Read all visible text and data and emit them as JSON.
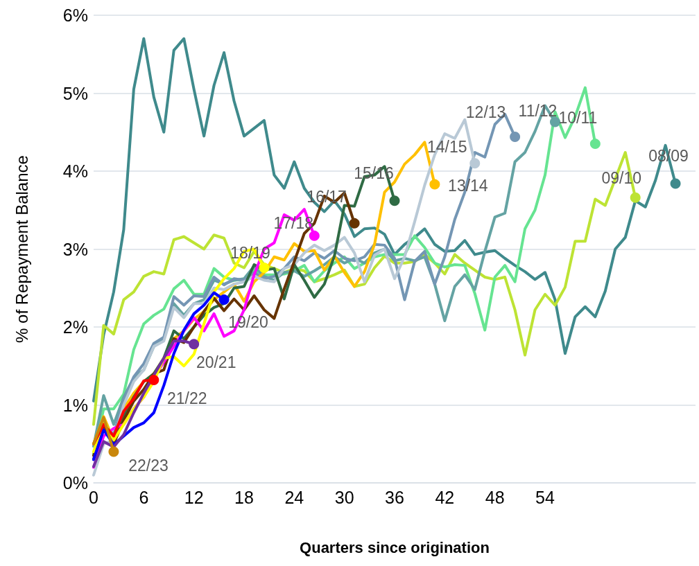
{
  "chart_data": {
    "type": "line",
    "xlabel": "Quarters since origination",
    "ylabel": "% of Repayment Balance",
    "x": [
      0,
      1.2,
      2.4,
      3.6,
      4.8,
      6,
      7.2,
      8.4,
      9.6,
      10.8,
      12,
      13.2,
      14.4,
      15.6,
      16.8,
      18,
      19.2,
      20.4,
      21.6,
      22.8,
      24,
      25.2,
      26.4,
      27.6,
      28.8,
      30,
      31.2,
      32.4,
      33.6,
      34.8,
      36,
      37.2,
      38.4,
      39.6,
      40.8,
      42,
      43.2,
      44.4,
      45.6,
      46.8,
      48,
      49.2,
      50.4,
      51.6,
      52.8,
      54,
      55.2,
      56.4,
      57.6,
      58.8,
      60,
      61.2,
      62.4,
      63.6,
      64.8,
      66,
      67.2,
      68.4,
      69.6
    ],
    "xlim": [
      0,
      72
    ],
    "xticks": [
      0,
      6,
      12,
      18,
      24,
      30,
      36,
      42,
      48,
      54
    ],
    "ylim": [
      0,
      6
    ],
    "yticks": [
      {
        "value": 0,
        "label": "0%"
      },
      {
        "value": 1,
        "label": "1%"
      },
      {
        "value": 2,
        "label": "2%"
      },
      {
        "value": 3,
        "label": "3%"
      },
      {
        "value": 4,
        "label": "4%"
      },
      {
        "value": 5,
        "label": "5%"
      },
      {
        "value": 6,
        "label": "6%"
      }
    ],
    "grid": "y",
    "line_style": "solid",
    "series": [
      {
        "name": "08/09",
        "color": "#3f8a8c",
        "values": [
          1.05,
          1.9,
          2.45,
          3.25,
          5.05,
          5.7,
          4.95,
          4.5,
          5.55,
          5.7,
          5.05,
          4.45,
          5.1,
          5.52,
          4.9,
          4.45,
          4.55,
          4.65,
          3.95,
          3.78,
          4.12,
          3.78,
          3.6,
          3.48,
          3.62,
          3.45,
          3.16,
          3.26,
          3.27,
          3.19,
          2.93,
          3.06,
          3.15,
          3.26,
          3.06,
          2.97,
          2.98,
          3.11,
          2.93,
          2.96,
          2.98,
          2.88,
          2.79,
          2.71,
          2.61,
          2.7,
          2.35,
          1.66,
          2.13,
          2.26,
          2.13,
          2.46,
          3.0,
          3.15,
          3.62,
          3.54,
          3.88,
          4.33,
          3.84
        ]
      },
      {
        "name": "09/10",
        "color": "#bde334",
        "values": [
          0.75,
          2.02,
          1.91,
          2.35,
          2.45,
          2.65,
          2.71,
          2.68,
          3.12,
          3.16,
          3.08,
          3.0,
          3.18,
          3.14,
          2.82,
          2.76,
          2.97,
          2.8,
          2.75,
          2.7,
          2.75,
          2.72,
          2.58,
          2.62,
          2.67,
          2.73,
          2.52,
          2.55,
          2.76,
          2.91,
          2.82,
          2.82,
          2.84,
          2.93,
          2.82,
          2.68,
          2.93,
          2.82,
          2.73,
          2.64,
          2.61,
          2.64,
          2.22,
          1.64,
          2.22,
          2.42,
          2.28,
          2.51,
          3.1,
          3.1,
          3.64,
          3.56,
          3.9,
          4.24,
          3.66,
          null,
          null,
          null,
          null
        ]
      },
      {
        "name": "10/11",
        "color": "#66e491",
        "values": [
          0.37,
          0.95,
          0.95,
          1.14,
          1.71,
          2.04,
          2.15,
          2.23,
          2.49,
          2.6,
          2.42,
          2.42,
          2.75,
          2.64,
          2.6,
          2.61,
          2.73,
          2.67,
          2.67,
          2.68,
          2.72,
          2.79,
          2.58,
          2.72,
          2.82,
          2.9,
          2.75,
          2.82,
          2.9,
          2.93,
          2.93,
          2.93,
          3.17,
          3.02,
          2.82,
          2.77,
          2.8,
          2.79,
          2.43,
          1.96,
          2.64,
          2.79,
          2.58,
          3.26,
          3.5,
          3.95,
          4.76,
          4.43,
          4.7,
          5.07,
          4.35,
          null,
          null,
          null,
          null,
          null,
          null,
          null,
          null
        ]
      },
      {
        "name": "11/12",
        "color": "#64a3a3",
        "values": [
          0.47,
          1.12,
          0.75,
          1.1,
          1.35,
          1.45,
          1.75,
          1.85,
          2.3,
          2.15,
          2.3,
          2.35,
          2.6,
          2.55,
          2.6,
          2.62,
          2.78,
          2.65,
          2.6,
          2.7,
          2.72,
          2.65,
          2.72,
          2.8,
          2.9,
          2.82,
          2.88,
          2.82,
          2.95,
          3.0,
          2.85,
          2.88,
          2.85,
          2.9,
          2.55,
          2.08,
          2.52,
          2.67,
          2.48,
          2.97,
          3.41,
          3.46,
          4.12,
          4.24,
          4.51,
          4.84,
          4.63,
          null,
          null,
          null,
          null,
          null,
          null,
          null,
          null,
          null,
          null,
          null,
          null
        ]
      },
      {
        "name": "12/13",
        "color": "#7496b4",
        "values": [
          0.3,
          0.75,
          0.62,
          1.06,
          1.36,
          1.53,
          1.79,
          1.87,
          2.39,
          2.28,
          2.4,
          2.39,
          2.64,
          2.54,
          2.62,
          2.6,
          2.7,
          2.62,
          2.65,
          2.75,
          2.9,
          2.85,
          2.95,
          2.88,
          2.98,
          2.88,
          2.85,
          2.9,
          3.06,
          3.05,
          2.88,
          2.35,
          2.84,
          2.97,
          2.55,
          2.9,
          3.38,
          3.73,
          4.24,
          4.18,
          4.6,
          4.73,
          4.44,
          null,
          null,
          null,
          null,
          null,
          null,
          null,
          null,
          null,
          null,
          null,
          null,
          null,
          null,
          null,
          null
        ]
      },
      {
        "name": "13/14",
        "color": "#ffc000",
        "values": [
          0.5,
          0.85,
          0.55,
          0.95,
          1.15,
          1.3,
          1.4,
          1.6,
          1.85,
          1.95,
          2.1,
          2.2,
          2.35,
          2.45,
          2.55,
          2.33,
          2.58,
          2.7,
          2.9,
          2.86,
          3.07,
          2.97,
          2.98,
          2.73,
          2.91,
          2.7,
          2.52,
          2.71,
          3.06,
          3.73,
          3.86,
          4.09,
          4.21,
          4.37,
          3.83,
          null,
          null,
          null,
          null,
          null,
          null,
          null,
          null,
          null,
          null,
          null,
          null,
          null,
          null,
          null,
          null,
          null,
          null,
          null,
          null,
          null,
          null,
          null,
          null
        ]
      },
      {
        "name": "14/15",
        "color": "#b9c9d6",
        "values": [
          0.1,
          0.5,
          0.55,
          1.0,
          1.3,
          1.45,
          1.75,
          1.82,
          2.25,
          2.12,
          2.3,
          2.3,
          2.5,
          2.48,
          2.55,
          2.58,
          2.65,
          2.6,
          2.58,
          2.75,
          2.8,
          2.95,
          3.05,
          2.98,
          3.05,
          3.15,
          2.95,
          2.58,
          2.92,
          3.0,
          2.62,
          2.9,
          3.35,
          3.82,
          4.21,
          4.48,
          4.42,
          4.66,
          4.1,
          null,
          null,
          null,
          null,
          null,
          null,
          null,
          null,
          null,
          null,
          null,
          null,
          null,
          null,
          null,
          null,
          null,
          null,
          null,
          null
        ]
      },
      {
        "name": "15/16",
        "color": "#2f6b44",
        "values": [
          0.3,
          0.8,
          0.55,
          0.85,
          1.1,
          1.3,
          1.4,
          1.6,
          1.95,
          1.85,
          2.0,
          2.15,
          2.25,
          2.3,
          2.5,
          2.52,
          2.8,
          2.73,
          2.75,
          2.36,
          2.8,
          2.6,
          2.38,
          2.55,
          2.91,
          3.56,
          3.55,
          3.93,
          3.95,
          4.06,
          3.62,
          null,
          null,
          null,
          null,
          null,
          null,
          null,
          null,
          null,
          null,
          null,
          null,
          null,
          null,
          null,
          null,
          null,
          null,
          null,
          null,
          null,
          null,
          null,
          null,
          null,
          null,
          null,
          null
        ]
      },
      {
        "name": "16/17",
        "color": "#663300",
        "values": [
          0.35,
          0.75,
          0.5,
          0.8,
          1.05,
          1.2,
          1.4,
          1.45,
          1.85,
          1.8,
          2.0,
          2.2,
          2.37,
          2.21,
          2.36,
          2.22,
          2.4,
          2.22,
          2.11,
          2.49,
          2.84,
          3.2,
          3.33,
          3.68,
          3.6,
          3.72,
          3.33,
          null,
          null,
          null,
          null,
          null,
          null,
          null,
          null,
          null,
          null,
          null,
          null,
          null,
          null,
          null,
          null,
          null,
          null,
          null,
          null,
          null,
          null,
          null,
          null,
          null,
          null,
          null,
          null,
          null,
          null,
          null,
          null
        ]
      },
      {
        "name": "17/18",
        "color": "#ff00ff",
        "values": [
          0.2,
          0.6,
          0.7,
          0.75,
          0.95,
          1.1,
          1.35,
          1.55,
          1.75,
          1.95,
          2.12,
          1.95,
          2.17,
          1.88,
          1.95,
          2.22,
          2.67,
          3.0,
          3.08,
          3.44,
          3.37,
          3.51,
          3.17,
          null,
          null,
          null,
          null,
          null,
          null,
          null,
          null,
          null,
          null,
          null,
          null,
          null,
          null,
          null,
          null,
          null,
          null,
          null,
          null,
          null,
          null,
          null,
          null,
          null,
          null,
          null,
          null,
          null,
          null,
          null,
          null,
          null,
          null,
          null,
          null
        ]
      },
      {
        "name": "18/19",
        "color": "#ffff00",
        "values": [
          0.4,
          0.8,
          0.55,
          0.75,
          0.95,
          1.1,
          1.3,
          1.6,
          1.62,
          1.5,
          1.65,
          2.04,
          2.45,
          2.62,
          2.75,
          2.97,
          3.0,
          2.76,
          null,
          null,
          null,
          null,
          null,
          null,
          null,
          null,
          null,
          null,
          null,
          null,
          null,
          null,
          null,
          null,
          null,
          null,
          null,
          null,
          null,
          null,
          null,
          null,
          null,
          null,
          null,
          null,
          null,
          null,
          null,
          null,
          null,
          null,
          null,
          null,
          null,
          null,
          null,
          null,
          null
        ]
      },
      {
        "name": "19/20",
        "color": "#0000ff",
        "values": [
          0.3,
          0.68,
          0.49,
          0.6,
          0.71,
          0.77,
          0.9,
          1.25,
          1.66,
          1.96,
          2.17,
          2.28,
          2.44,
          2.35,
          null,
          null,
          null,
          null,
          null,
          null,
          null,
          null,
          null,
          null,
          null,
          null,
          null,
          null,
          null,
          null,
          null,
          null,
          null,
          null,
          null,
          null,
          null,
          null,
          null,
          null,
          null,
          null,
          null,
          null,
          null,
          null,
          null,
          null,
          null,
          null,
          null,
          null,
          null,
          null,
          null,
          null,
          null,
          null,
          null
        ]
      },
      {
        "name": "20/21",
        "color": "#7030a0",
        "values": [
          0.21,
          0.53,
          0.46,
          0.62,
          0.9,
          1.15,
          1.38,
          1.6,
          1.82,
          1.82,
          1.78,
          null,
          null,
          null,
          null,
          null,
          null,
          null,
          null,
          null,
          null,
          null,
          null,
          null,
          null,
          null,
          null,
          null,
          null,
          null,
          null,
          null,
          null,
          null,
          null,
          null,
          null,
          null,
          null,
          null,
          null,
          null,
          null,
          null,
          null,
          null,
          null,
          null,
          null,
          null,
          null,
          null,
          null,
          null,
          null,
          null,
          null,
          null,
          null
        ]
      },
      {
        "name": "21/22",
        "color": "#ff0000",
        "values": [
          0.5,
          0.75,
          0.6,
          0.92,
          1.08,
          1.31,
          1.32,
          null,
          null,
          null,
          null,
          null,
          null,
          null,
          null,
          null,
          null,
          null,
          null,
          null,
          null,
          null,
          null,
          null,
          null,
          null,
          null,
          null,
          null,
          null,
          null,
          null,
          null,
          null,
          null,
          null,
          null,
          null,
          null,
          null,
          null,
          null,
          null,
          null,
          null,
          null,
          null,
          null,
          null,
          null,
          null,
          null,
          null,
          null,
          null,
          null,
          null,
          null,
          null
        ]
      },
      {
        "name": "22/23",
        "color": "#c9870c",
        "values": [
          0.5,
          0.84,
          0.4,
          null,
          null,
          null,
          null,
          null,
          null,
          null,
          null,
          null,
          null,
          null,
          null,
          null,
          null,
          null,
          null,
          null,
          null,
          null,
          null,
          null,
          null,
          null,
          null,
          null,
          null,
          null,
          null,
          null,
          null,
          null,
          null,
          null,
          null,
          null,
          null,
          null,
          null,
          null,
          null,
          null,
          null,
          null,
          null,
          null,
          null,
          null,
          null,
          null,
          null,
          null,
          null,
          null,
          null,
          null,
          null
        ]
      }
    ]
  }
}
